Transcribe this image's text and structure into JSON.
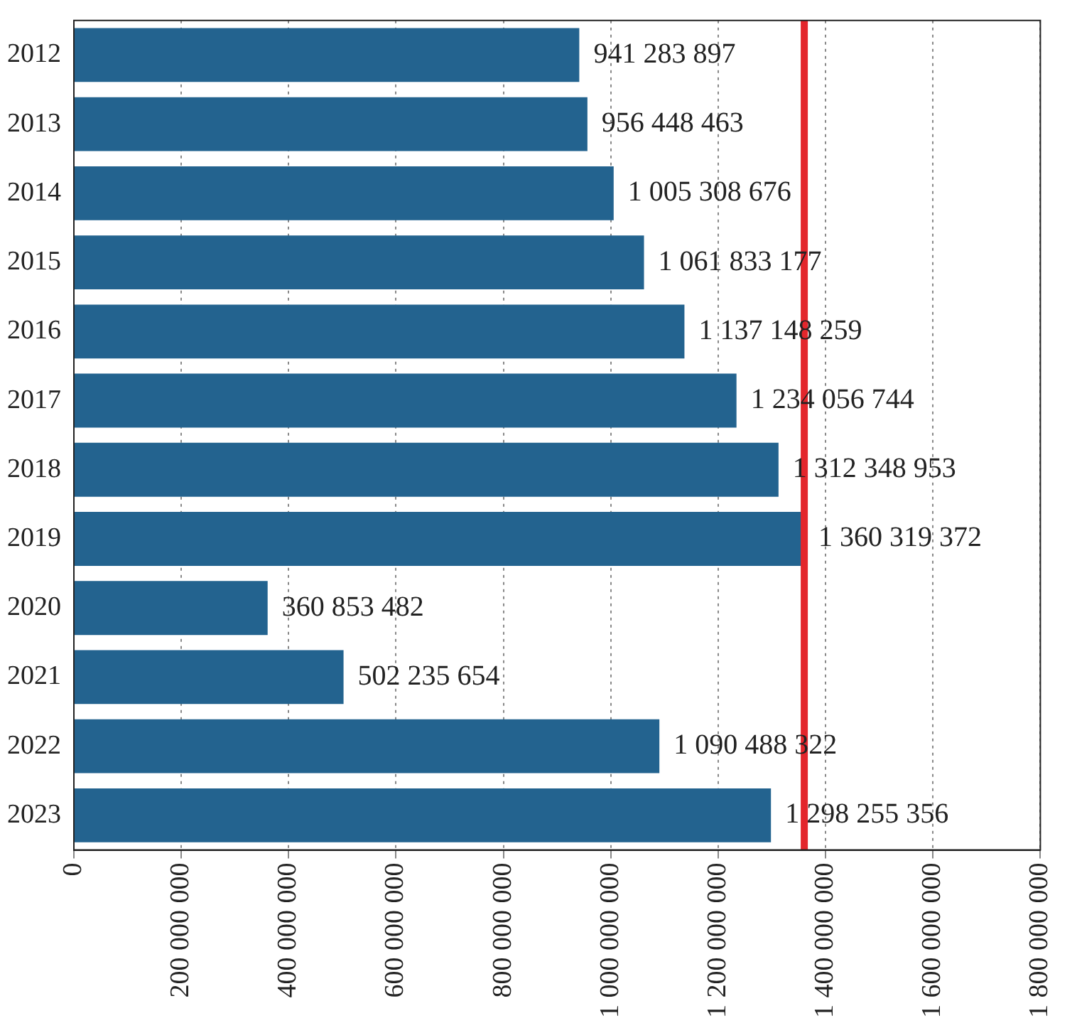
{
  "chart_data": {
    "type": "bar",
    "orientation": "horizontal",
    "categories": [
      "2012",
      "2013",
      "2014",
      "2015",
      "2016",
      "2017",
      "2018",
      "2019",
      "2020",
      "2021",
      "2022",
      "2023"
    ],
    "values": [
      941283897,
      956448463,
      1005308676,
      1061833177,
      1137148259,
      1234056744,
      1312348953,
      1360319372,
      360853482,
      502235654,
      1090488322,
      1298255356
    ],
    "value_labels": [
      "941 283 897",
      "956 448 463",
      "1 005 308 676",
      "1 061 833 177",
      "1 137 148 259",
      "1 234 056 744",
      "1 312 348 953",
      "1 360 319 372",
      "360 853 482",
      "502 235 654",
      "1 090 488 322",
      "1 298 255 356"
    ],
    "color": "#23638f",
    "xlim": [
      0,
      1800000000
    ],
    "xticks": [
      0,
      {
        "value": 200000000,
        "label": "200 000 000"
      },
      {
        "value": 400000000,
        "label": "400 000 000"
      },
      {
        "value": 600000000,
        "label": "600 000 000"
      },
      {
        "value": 800000000,
        "label": "800 000 000"
      },
      {
        "value": 1000000000,
        "label": "1 000 000 000"
      },
      {
        "value": 1200000000,
        "label": "1 200 000 000"
      },
      {
        "value": 1400000000,
        "label": "1 400 000 000"
      },
      {
        "value": 1600000000,
        "label": "1 600 000 000"
      },
      {
        "value": 1800000000,
        "label": "1 800 000 000"
      }
    ],
    "ref_lines": [
      {
        "axis": "x",
        "value": 1360319372,
        "color": "#e3262c"
      }
    ],
    "grid": "x",
    "legend": false
  }
}
